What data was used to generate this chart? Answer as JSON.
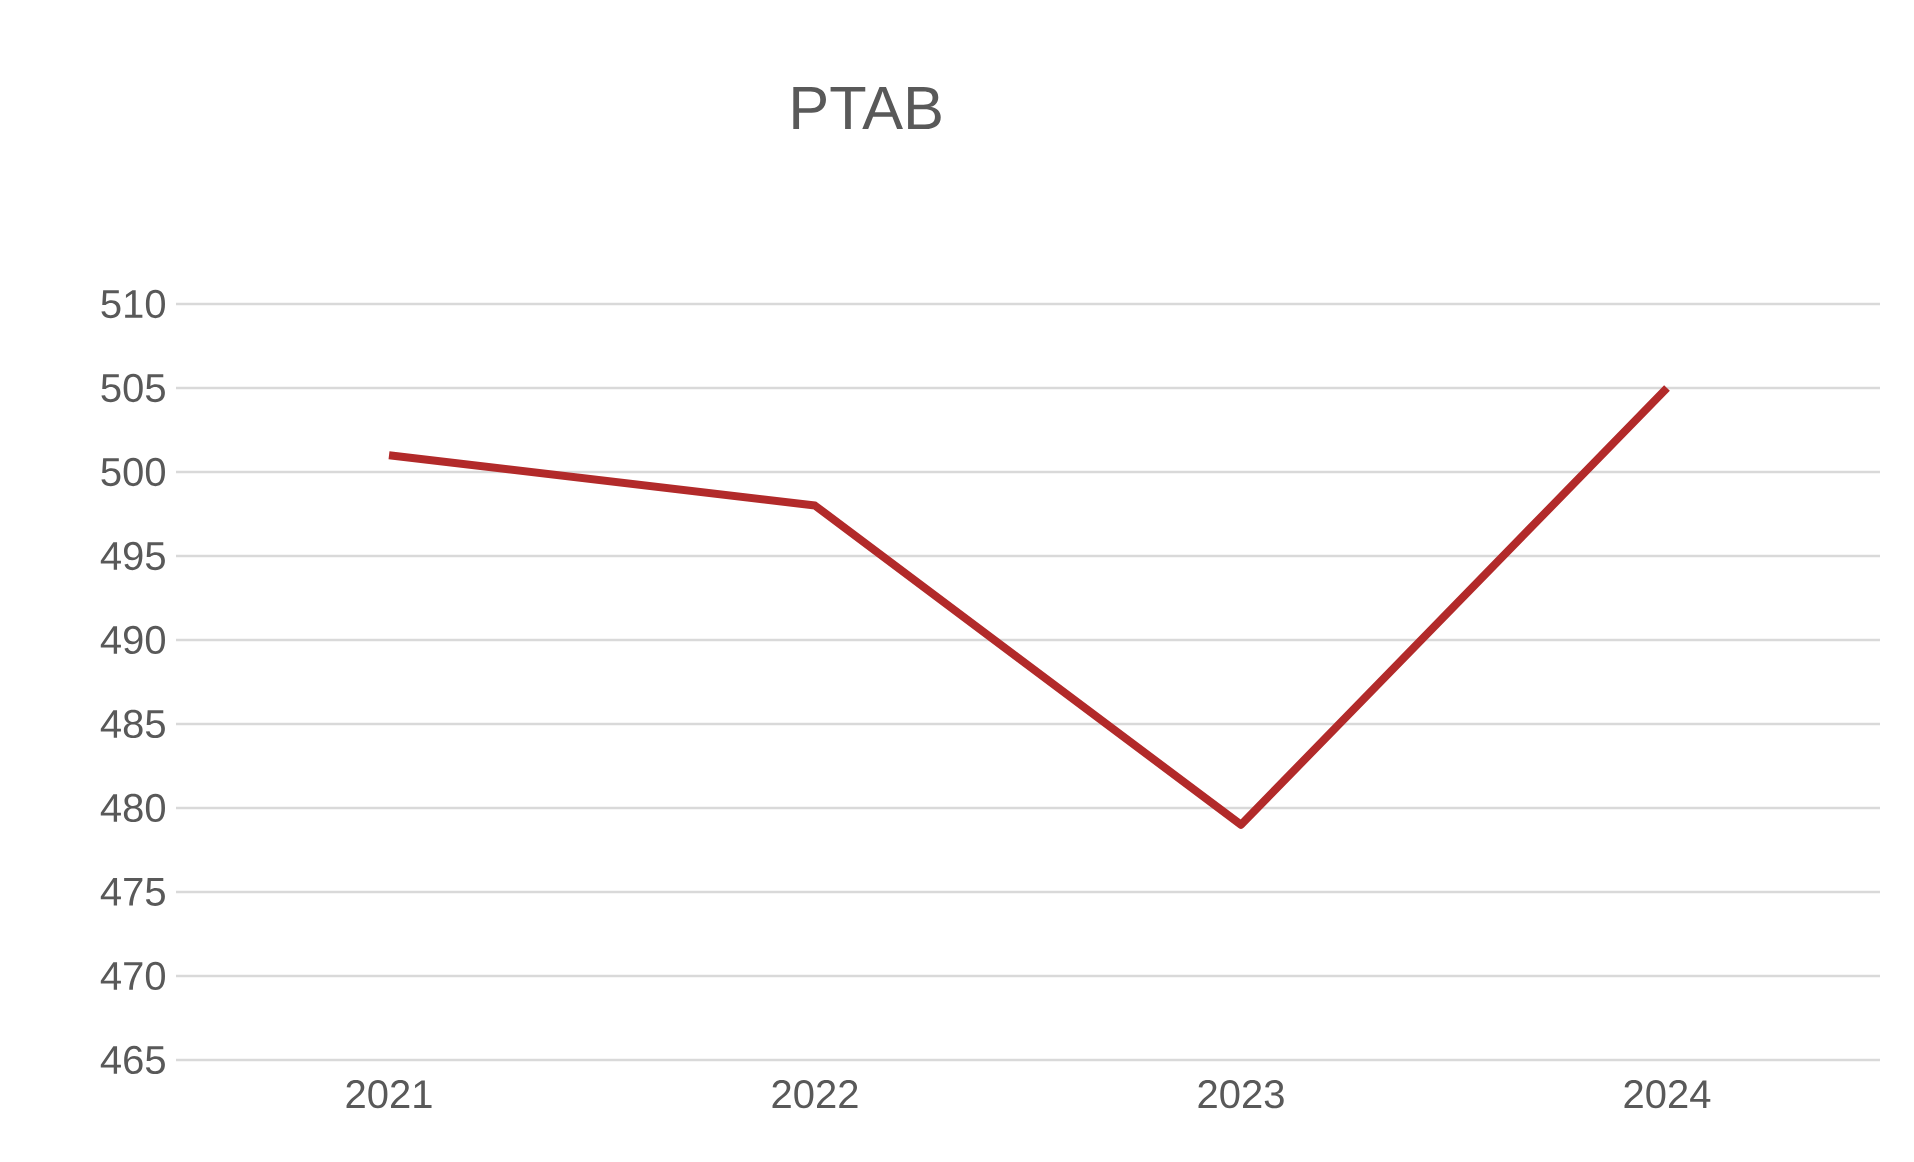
{
  "chart_data": {
    "type": "line",
    "title": "PTAB",
    "categories": [
      "2021",
      "2022",
      "2023",
      "2024"
    ],
    "values": [
      501,
      498,
      479,
      505
    ],
    "color": "#b22a2a",
    "ylim": [
      465,
      510
    ],
    "yticks": [
      465,
      470,
      475,
      480,
      485,
      490,
      495,
      500,
      505,
      510
    ],
    "grid": "y",
    "marker": "none",
    "line_style": "solid"
  }
}
